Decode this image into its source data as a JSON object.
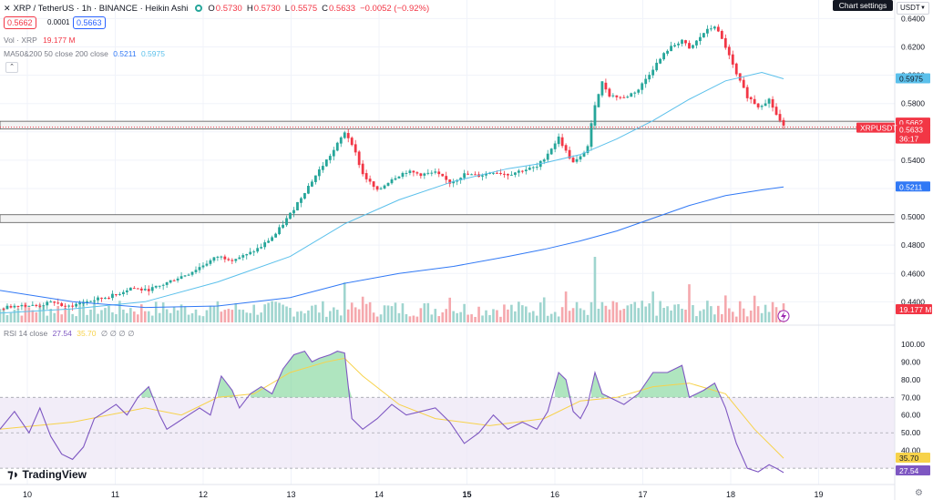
{
  "header": {
    "symbol": "XRP / TetherUS · 1h · BINANCE · Heikin Ashi",
    "open_key": "O",
    "open_val": "0.5730",
    "high_key": "H",
    "high_val": "0.5730",
    "low_key": "L",
    "low_val": "0.5575",
    "close_key": "C",
    "close_val": "0.5633",
    "change": "−0.0052 (−0.92%)"
  },
  "trade": {
    "sell": "0.5662",
    "spread": "0.0001",
    "buy": "0.5663"
  },
  "indicators": {
    "vol_label": "Vol · XRP",
    "vol_value": "19.177 M",
    "ma_label": "MA50&200 50 close 200 close",
    "ma50_value": "0.5211",
    "ma200_value": "0.5975",
    "rsi_label": "RSI 14 close",
    "rsi_value": "27.54",
    "rsi_ma_value": "35.70",
    "rsi_extra": "∅ ∅ ∅ ∅"
  },
  "toolbar": {
    "chart_settings": "Chart settings",
    "currency": "USDT"
  },
  "branding": {
    "name": "TradingView"
  },
  "colors": {
    "up": "#26a69a",
    "down": "#f23645",
    "ma_light": "#5bc0eb",
    "ma_dark": "#3179f5",
    "rsi_line": "#7e57c2",
    "rsi_ma": "#f7d24a",
    "rsi_band": "#ede7f6"
  },
  "icons": {
    "status": "status-dot-icon",
    "collapse": "chevron-up-icon",
    "settings": "gear-icon",
    "logo": "tradingview-logo-icon",
    "flash": "lightning-icon"
  },
  "chart_data": [
    {
      "type": "candlestick",
      "subtype": "Heikin Ashi",
      "y_ticks": [
        "0.6400",
        "0.6200",
        "0.6000",
        "0.5800",
        "0.5600",
        "0.5400",
        "0.5200",
        "0.5000",
        "0.4800",
        "0.4600",
        "0.4400"
      ],
      "ylim": [
        0.428,
        0.648
      ],
      "x_ticks": [
        "10",
        "11",
        "12",
        "13",
        "14",
        "15",
        "16",
        "17",
        "18",
        "19"
      ],
      "price_path": [
        [
          0,
          0.435
        ],
        [
          5,
          0.438
        ],
        [
          10,
          0.437
        ],
        [
          15,
          0.44
        ],
        [
          18,
          0.436
        ],
        [
          22,
          0.439
        ],
        [
          27,
          0.442
        ],
        [
          32,
          0.445
        ],
        [
          36,
          0.45
        ],
        [
          40,
          0.448
        ],
        [
          44,
          0.451
        ],
        [
          48,
          0.456
        ],
        [
          52,
          0.46
        ],
        [
          56,
          0.466
        ],
        [
          60,
          0.472
        ],
        [
          64,
          0.47
        ],
        [
          68,
          0.473
        ],
        [
          72,
          0.479
        ],
        [
          76,
          0.488
        ],
        [
          80,
          0.502
        ],
        [
          84,
          0.518
        ],
        [
          88,
          0.533
        ],
        [
          92,
          0.547
        ],
        [
          95,
          0.56
        ],
        [
          97,
          0.552
        ],
        [
          100,
          0.53
        ],
        [
          104,
          0.518
        ],
        [
          108,
          0.527
        ],
        [
          112,
          0.532
        ],
        [
          116,
          0.53
        ],
        [
          120,
          0.531
        ],
        [
          124,
          0.524
        ],
        [
          128,
          0.53
        ],
        [
          132,
          0.529
        ],
        [
          136,
          0.532
        ],
        [
          140,
          0.53
        ],
        [
          144,
          0.533
        ],
        [
          148,
          0.535
        ],
        [
          151,
          0.545
        ],
        [
          154,
          0.556
        ],
        [
          156,
          0.546
        ],
        [
          158,
          0.538
        ],
        [
          160,
          0.542
        ],
        [
          162,
          0.55
        ],
        [
          164,
          0.58
        ],
        [
          166,
          0.595
        ],
        [
          168,
          0.586
        ],
        [
          172,
          0.584
        ],
        [
          176,
          0.59
        ],
        [
          180,
          0.605
        ],
        [
          184,
          0.618
        ],
        [
          188,
          0.625
        ],
        [
          190,
          0.618
        ],
        [
          194,
          0.63
        ],
        [
          197,
          0.635
        ],
        [
          200,
          0.62
        ],
        [
          203,
          0.6
        ],
        [
          206,
          0.585
        ],
        [
          209,
          0.578
        ],
        [
          212,
          0.583
        ],
        [
          214,
          0.572
        ],
        [
          216,
          0.5633
        ]
      ],
      "ma_light_path": [
        [
          0,
          0.432
        ],
        [
          20,
          0.435
        ],
        [
          40,
          0.44
        ],
        [
          60,
          0.454
        ],
        [
          80,
          0.472
        ],
        [
          95,
          0.495
        ],
        [
          110,
          0.512
        ],
        [
          125,
          0.525
        ],
        [
          140,
          0.534
        ],
        [
          150,
          0.538
        ],
        [
          160,
          0.544
        ],
        [
          170,
          0.555
        ],
        [
          180,
          0.568
        ],
        [
          190,
          0.583
        ],
        [
          200,
          0.596
        ],
        [
          210,
          0.602
        ],
        [
          216,
          0.5975
        ]
      ],
      "ma_dark_path": [
        [
          0,
          0.448
        ],
        [
          20,
          0.44
        ],
        [
          40,
          0.436
        ],
        [
          60,
          0.437
        ],
        [
          80,
          0.443
        ],
        [
          95,
          0.453
        ],
        [
          110,
          0.46
        ],
        [
          125,
          0.465
        ],
        [
          140,
          0.472
        ],
        [
          150,
          0.477
        ],
        [
          160,
          0.483
        ],
        [
          170,
          0.49
        ],
        [
          180,
          0.499
        ],
        [
          190,
          0.508
        ],
        [
          200,
          0.515
        ],
        [
          210,
          0.519
        ],
        [
          216,
          0.5211
        ]
      ],
      "zones": [
        [
          0.562,
          0.5675
        ],
        [
          0.496,
          0.5015
        ]
      ],
      "labels": {
        "ma200": "0.5975",
        "sell": "0.5662",
        "last": "0.5633",
        "timer": "36:17",
        "symbol_tag": "XRPUSDT",
        "ma50": "0.5211",
        "volume": "19.177 M"
      }
    },
    {
      "type": "line",
      "name": "RSI 14 close",
      "y_ticks": [
        "100.00",
        "90.00",
        "80.00",
        "70.00",
        "60.00",
        "50.00",
        "40.00",
        "30.00"
      ],
      "ylim": [
        27,
        103
      ],
      "levels": [
        70,
        50,
        30
      ],
      "rsi_path": [
        [
          0,
          52
        ],
        [
          4,
          62
        ],
        [
          8,
          50
        ],
        [
          11,
          64
        ],
        [
          14,
          48
        ],
        [
          17,
          38
        ],
        [
          20,
          35
        ],
        [
          23,
          42
        ],
        [
          26,
          58
        ],
        [
          29,
          62
        ],
        [
          32,
          66
        ],
        [
          35,
          60
        ],
        [
          38,
          70
        ],
        [
          41,
          76
        ],
        [
          44,
          60
        ],
        [
          46,
          52
        ],
        [
          49,
          56
        ],
        [
          52,
          60
        ],
        [
          55,
          64
        ],
        [
          58,
          60
        ],
        [
          61,
          82
        ],
        [
          64,
          74
        ],
        [
          66,
          64
        ],
        [
          69,
          72
        ],
        [
          72,
          76
        ],
        [
          75,
          72
        ],
        [
          78,
          86
        ],
        [
          81,
          94
        ],
        [
          84,
          96
        ],
        [
          86,
          90
        ],
        [
          88,
          92
        ],
        [
          91,
          94
        ],
        [
          93,
          96
        ],
        [
          95,
          95
        ],
        [
          97,
          58
        ],
        [
          100,
          52
        ],
        [
          104,
          58
        ],
        [
          108,
          66
        ],
        [
          112,
          60
        ],
        [
          116,
          62
        ],
        [
          120,
          64
        ],
        [
          124,
          56
        ],
        [
          128,
          44
        ],
        [
          132,
          50
        ],
        [
          136,
          60
        ],
        [
          140,
          52
        ],
        [
          144,
          56
        ],
        [
          148,
          52
        ],
        [
          151,
          62
        ],
        [
          154,
          84
        ],
        [
          156,
          80
        ],
        [
          158,
          62
        ],
        [
          160,
          58
        ],
        [
          162,
          66
        ],
        [
          164,
          84
        ],
        [
          166,
          72
        ],
        [
          168,
          70
        ],
        [
          172,
          66
        ],
        [
          176,
          72
        ],
        [
          180,
          84
        ],
        [
          184,
          84
        ],
        [
          188,
          88
        ],
        [
          190,
          70
        ],
        [
          194,
          74
        ],
        [
          197,
          78
        ],
        [
          200,
          64
        ],
        [
          203,
          44
        ],
        [
          206,
          30
        ],
        [
          209,
          28
        ],
        [
          212,
          32
        ],
        [
          214,
          30
        ],
        [
          216,
          27.54
        ]
      ],
      "rsi_ma_path": [
        [
          0,
          52
        ],
        [
          20,
          56
        ],
        [
          40,
          64
        ],
        [
          50,
          60
        ],
        [
          60,
          70
        ],
        [
          70,
          72
        ],
        [
          80,
          84
        ],
        [
          90,
          90
        ],
        [
          95,
          92
        ],
        [
          100,
          82
        ],
        [
          110,
          66
        ],
        [
          120,
          58
        ],
        [
          135,
          54
        ],
        [
          150,
          58
        ],
        [
          160,
          68
        ],
        [
          170,
          70
        ],
        [
          180,
          76
        ],
        [
          190,
          78
        ],
        [
          200,
          72
        ],
        [
          208,
          52
        ],
        [
          216,
          35.7
        ]
      ],
      "labels": {
        "rsi": "27.54",
        "rsi_ma": "35.70"
      }
    }
  ]
}
